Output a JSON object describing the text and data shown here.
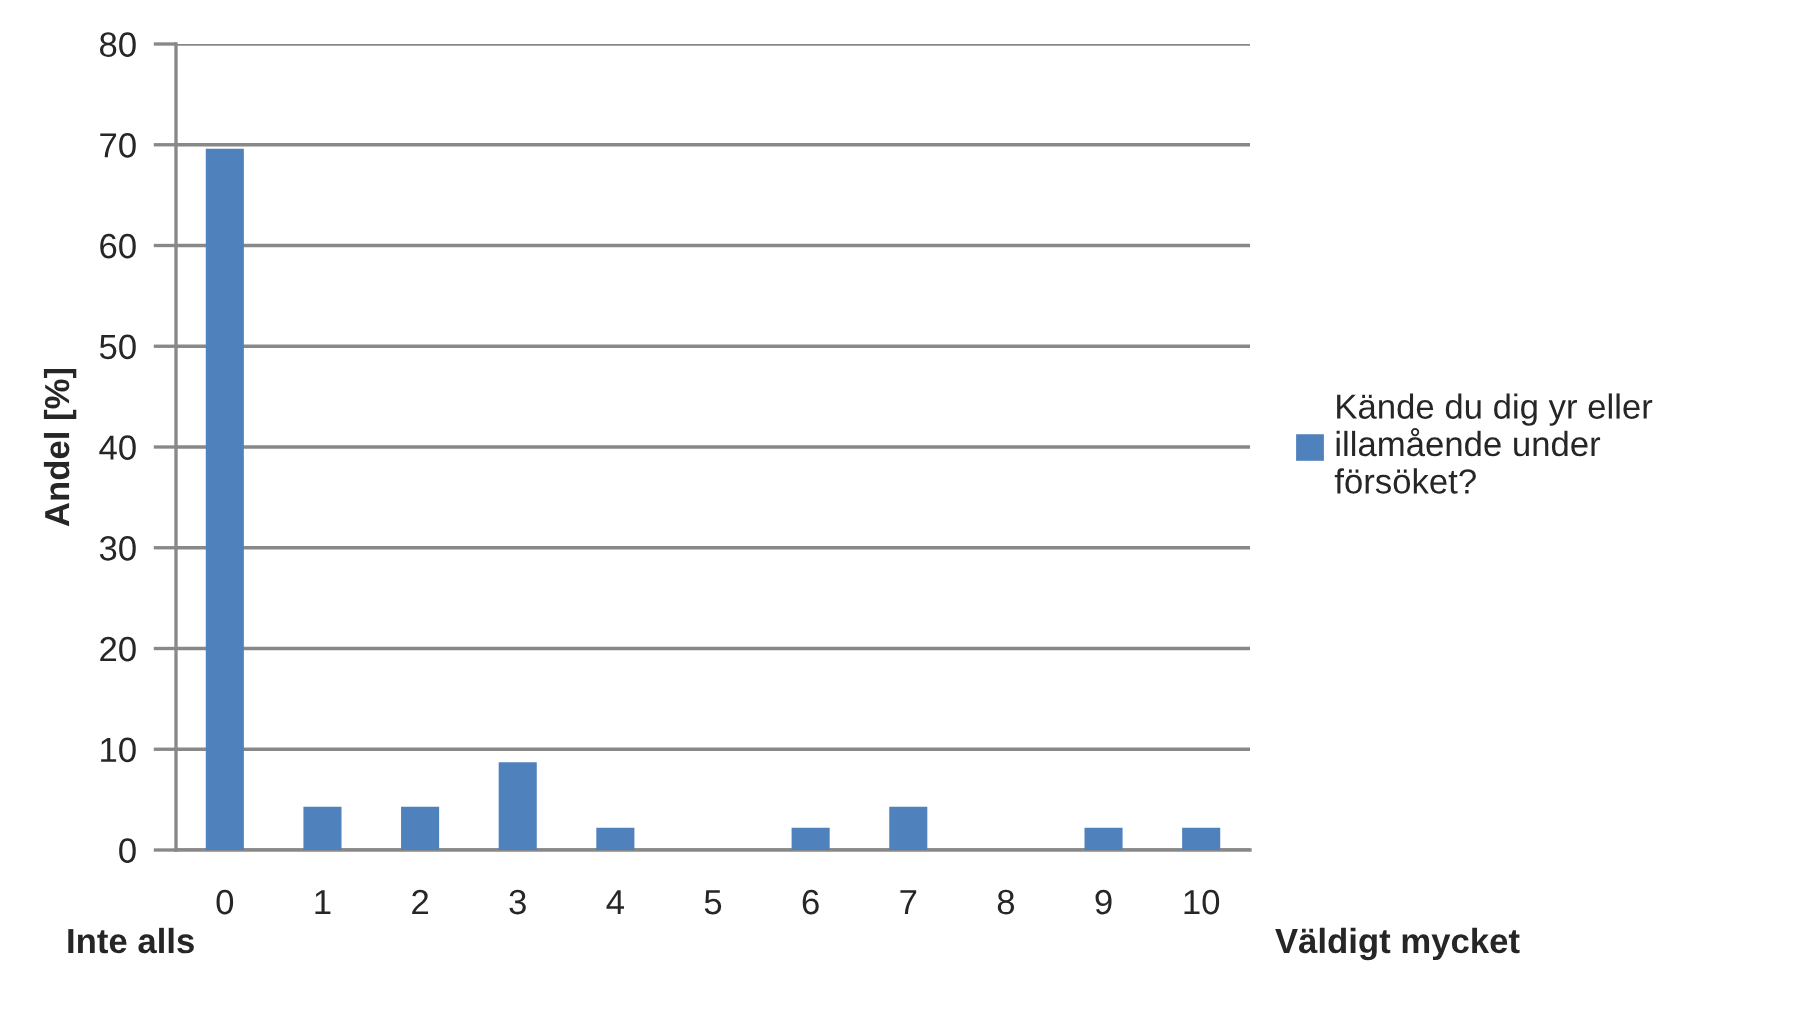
{
  "chart_data": {
    "type": "bar",
    "ylabel": "Andel [%]",
    "categories": [
      "0",
      "1",
      "2",
      "3",
      "4",
      "5",
      "6",
      "7",
      "8",
      "9",
      "10"
    ],
    "series": [
      {
        "name": "Kände du dig yr eller illamående under försöket?",
        "color": "#4f81bd",
        "values": [
          69.6,
          4.3,
          4.3,
          8.7,
          2.2,
          0,
          2.2,
          4.3,
          0,
          2.2,
          2.2
        ]
      }
    ],
    "ylim": [
      0,
      80
    ],
    "yticks": [
      0,
      10,
      20,
      30,
      40,
      50,
      60,
      70,
      80
    ],
    "grid": "y",
    "legend": "right",
    "annotations": [
      "Inte alls",
      "Väldigt mycket"
    ]
  }
}
